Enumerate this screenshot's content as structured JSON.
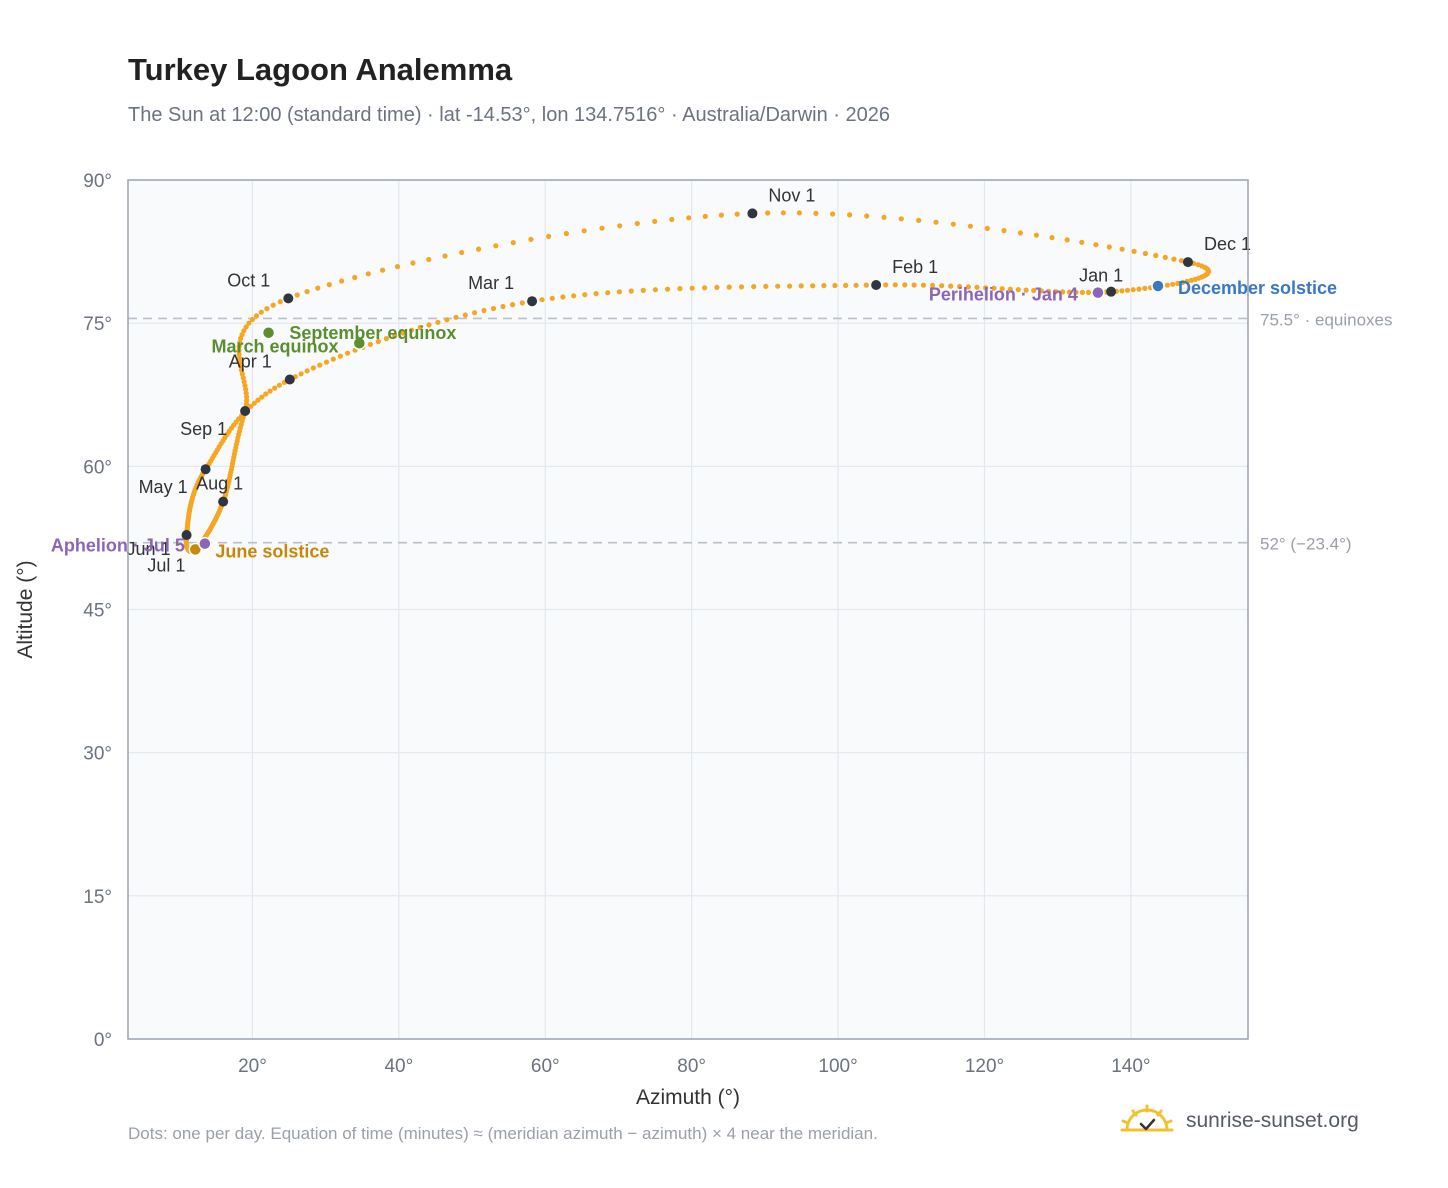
{
  "title": "Turkey Lagoon Analemma",
  "subtitle": "The Sun at 12:00 (standard time) · lat -14.53°, lon 134.7516° · Australia/Darwin · 2026",
  "footnote": "Dots: one per day. Equation of time (minutes) ≈ (meridian azimuth − azimuth) × 4 near the meridian.",
  "brand": {
    "name": "sunrise-sunset.org",
    "icon": "sun-check-icon"
  },
  "colors": {
    "path": "#f5a623",
    "month_marker": "#2f3640",
    "equinox": "#5a8f2e",
    "june_solstice": "#c8870b",
    "december_solstice": "#3a78c3",
    "apsis": "#8c65b5",
    "reference_line": "#b8c0ca",
    "plot_bg": "#f8fafc",
    "grid": "#e3e8ee"
  },
  "chart_data": {
    "type": "scatter",
    "xlabel": "Azimuth (°)",
    "ylabel": "Altitude (°)",
    "xlim": [
      3,
      156
    ],
    "ylim": [
      0,
      90
    ],
    "xticks": [
      20,
      40,
      60,
      80,
      100,
      120,
      140
    ],
    "xtick_labels": [
      "20°",
      "40°",
      "60°",
      "80°",
      "100°",
      "120°",
      "140°"
    ],
    "yticks": [
      0,
      15,
      30,
      45,
      60,
      75,
      90
    ],
    "ytick_labels": [
      "0°",
      "15°",
      "30°",
      "45°",
      "60°",
      "75°",
      "90°"
    ],
    "grid": true,
    "reference_lines": [
      {
        "y": 75.5,
        "label": "75.5° · equinoxes"
      },
      {
        "y": 52,
        "label": "52° (−23.4°)"
      }
    ],
    "months": [
      {
        "label": "Jan 1",
        "azimuth": 137.3,
        "altitude": 78.3
      },
      {
        "label": "Feb 1",
        "azimuth": 105.2,
        "altitude": 79.0
      },
      {
        "label": "Mar 1",
        "azimuth": 58.2,
        "altitude": 77.3
      },
      {
        "label": "Apr 1",
        "azimuth": 25.1,
        "altitude": 69.1
      },
      {
        "label": "May 1",
        "azimuth": 13.6,
        "altitude": 59.7
      },
      {
        "label": "Jun 1",
        "azimuth": 11.0,
        "altitude": 52.8
      },
      {
        "label": "Jul 1",
        "azimuth": 12.2,
        "altitude": 51.3
      },
      {
        "label": "Aug 1",
        "azimuth": 16.0,
        "altitude": 56.3
      },
      {
        "label": "Sep 1",
        "azimuth": 19.0,
        "altitude": 65.8
      },
      {
        "label": "Oct 1",
        "azimuth": 24.9,
        "altitude": 77.6
      },
      {
        "label": "Nov 1",
        "azimuth": 88.3,
        "altitude": 86.5
      },
      {
        "label": "Dec 1",
        "azimuth": 147.8,
        "altitude": 81.4
      }
    ],
    "events": [
      {
        "label": "March equinox",
        "azimuth": 22.2,
        "altitude": 74.0,
        "kind": "equinox"
      },
      {
        "label": "September equinox",
        "azimuth": 34.6,
        "altitude": 72.9,
        "kind": "equinox"
      },
      {
        "label": "June solstice",
        "azimuth": 12.2,
        "altitude": 51.3,
        "kind": "june_solstice"
      },
      {
        "label": "December solstice",
        "azimuth": 143.7,
        "altitude": 78.9,
        "kind": "december_solstice"
      },
      {
        "label": "Aphelion · Jul 5",
        "azimuth": 13.5,
        "altitude": 51.9,
        "kind": "apsis"
      },
      {
        "label": "Perihelion · Jan 4",
        "azimuth": 135.5,
        "altitude": 78.2,
        "kind": "apsis"
      }
    ]
  }
}
